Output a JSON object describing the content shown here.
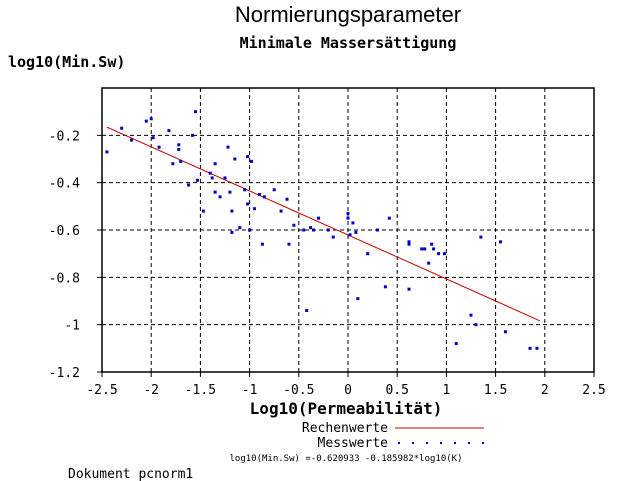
{
  "chart_data": {
    "type": "scatter",
    "title": "Normierungsparameter",
    "subtitle": "Minimale Massersättigung",
    "ylabel": "log10(Min.Sw)",
    "xlabel": "Log10(Permeabilität)",
    "xlim": [
      -2.5,
      2.5
    ],
    "ylim": [
      -1.2,
      0
    ],
    "x_ticks": [
      -2.5,
      -2,
      -1.5,
      -1,
      -0.5,
      0,
      0.5,
      1,
      1.5,
      2,
      2.5
    ],
    "x_tick_labels": [
      "-2.5",
      "-2",
      "-1.5",
      "-1",
      "-0.5",
      "0",
      "0.5",
      "1",
      "1.5",
      "2",
      "2.5"
    ],
    "y_ticks": [
      -0.2,
      -0.4,
      -0.6,
      -0.8,
      -1,
      -1.2
    ],
    "y_tick_labels": [
      "-0.2",
      "-0.4",
      "-0.6",
      "-0.8",
      "-1",
      "-1.2"
    ],
    "grid": true,
    "series": [
      {
        "name": "Rechenwerte",
        "kind": "line",
        "color": "#cc0000",
        "intercept": -0.620933,
        "slope": -0.185982,
        "x_range": [
          -2.45,
          1.95
        ]
      },
      {
        "name": "Messwerte",
        "kind": "scatter",
        "color": "#0000cc",
        "points": [
          [
            -2.45,
            -0.27
          ],
          [
            -2.3,
            -0.17
          ],
          [
            -2.2,
            -0.22
          ],
          [
            -2.05,
            -0.14
          ],
          [
            -2.0,
            -0.13
          ],
          [
            -1.98,
            -0.21
          ],
          [
            -1.92,
            -0.25
          ],
          [
            -1.82,
            -0.18
          ],
          [
            -1.78,
            -0.32
          ],
          [
            -1.72,
            -0.26
          ],
          [
            -1.72,
            -0.24
          ],
          [
            -1.7,
            -0.31
          ],
          [
            -1.62,
            -0.41
          ],
          [
            -1.58,
            -0.2
          ],
          [
            -1.55,
            -0.1
          ],
          [
            -1.53,
            -0.39
          ],
          [
            -1.47,
            -0.52
          ],
          [
            -1.4,
            -0.36
          ],
          [
            -1.38,
            -0.38
          ],
          [
            -1.35,
            -0.44
          ],
          [
            -1.35,
            -0.32
          ],
          [
            -1.3,
            -0.46
          ],
          [
            -1.25,
            -0.38
          ],
          [
            -1.22,
            -0.25
          ],
          [
            -1.2,
            -0.44
          ],
          [
            -1.18,
            -0.52
          ],
          [
            -1.18,
            -0.61
          ],
          [
            -1.15,
            -0.3
          ],
          [
            -1.1,
            -0.59
          ],
          [
            -1.05,
            -0.43
          ],
          [
            -1.02,
            -0.29
          ],
          [
            -1.02,
            -0.49
          ],
          [
            -1.0,
            -0.6
          ],
          [
            -0.98,
            -0.31
          ],
          [
            -0.95,
            -0.51
          ],
          [
            -0.9,
            -0.45
          ],
          [
            -0.87,
            -0.66
          ],
          [
            -0.85,
            -0.46
          ],
          [
            -0.75,
            -0.43
          ],
          [
            -0.68,
            -0.52
          ],
          [
            -0.62,
            -0.47
          ],
          [
            -0.6,
            -0.66
          ],
          [
            -0.55,
            -0.58
          ],
          [
            -0.45,
            -0.6
          ],
          [
            -0.42,
            -0.94
          ],
          [
            -0.38,
            -0.59
          ],
          [
            -0.35,
            -0.6
          ],
          [
            -0.3,
            -0.55
          ],
          [
            -0.2,
            -0.6
          ],
          [
            -0.15,
            -0.63
          ],
          [
            0.0,
            -0.55
          ],
          [
            0.0,
            -0.53
          ],
          [
            0.02,
            -0.62
          ],
          [
            0.05,
            -0.57
          ],
          [
            0.08,
            -0.61
          ],
          [
            0.1,
            -0.89
          ],
          [
            0.2,
            -0.7
          ],
          [
            0.3,
            -0.6
          ],
          [
            0.38,
            -0.84
          ],
          [
            0.42,
            -0.55
          ],
          [
            0.62,
            -0.65
          ],
          [
            0.62,
            -0.66
          ],
          [
            0.62,
            -0.85
          ],
          [
            0.75,
            -0.68
          ],
          [
            0.78,
            -0.68
          ],
          [
            0.82,
            -0.74
          ],
          [
            0.85,
            -0.66
          ],
          [
            0.87,
            -0.68
          ],
          [
            0.92,
            -0.7
          ],
          [
            0.98,
            -0.7
          ],
          [
            1.1,
            -1.08
          ],
          [
            1.25,
            -0.96
          ],
          [
            1.3,
            -1.0
          ],
          [
            1.35,
            -0.63
          ],
          [
            1.55,
            -0.65
          ],
          [
            1.6,
            -1.03
          ],
          [
            1.85,
            -1.1
          ],
          [
            1.92,
            -1.1
          ]
        ]
      }
    ],
    "legend": [
      "Rechenwerte",
      "Messwerte"
    ],
    "legend_position": "bottom-center",
    "formula": "log10(Min.Sw) =-0.620933 -0.185982*log10(K)"
  },
  "footer": {
    "document_label": "Dokument pcnorm1"
  }
}
